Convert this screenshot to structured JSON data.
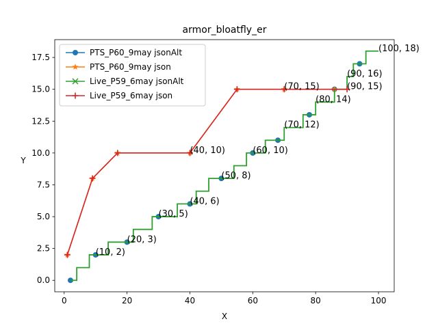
{
  "chart_data": {
    "type": "line",
    "title": "armor_bloatfly_er",
    "xlabel": "X",
    "ylabel": "Y",
    "xlim": [
      -3,
      105
    ],
    "ylim": [
      -0.9,
      18.9
    ],
    "xticks": [
      0,
      20,
      40,
      60,
      80,
      100
    ],
    "yticks": [
      0.0,
      2.5,
      5.0,
      7.5,
      10.0,
      12.5,
      15.0,
      17.5
    ],
    "ytick_labels": [
      "0.0",
      "2.5",
      "5.0",
      "7.5",
      "10.0",
      "12.5",
      "15.0",
      "17.5"
    ],
    "grid": false,
    "legend_position": "upper-left",
    "series": [
      {
        "name": "PTS_P60_9may jsonAlt",
        "color": "#1f77b4",
        "marker": "circle",
        "line": "none",
        "x": [
          2,
          10,
          20,
          30,
          40,
          50,
          60,
          68,
          78,
          86,
          94
        ],
        "y": [
          0,
          2,
          3,
          5,
          6,
          8,
          10,
          11,
          13,
          15,
          17
        ]
      },
      {
        "name": "PTS_P60_9may json",
        "color": "#ff7f0e",
        "marker": "star",
        "line": "solid",
        "x": [
          1,
          9,
          17,
          40,
          55,
          70,
          86
        ],
        "y": [
          2,
          8,
          10,
          10,
          15,
          15,
          15
        ]
      },
      {
        "name": "Live_P59_6may jsonAlt",
        "color": "#2ca02c",
        "marker": "x",
        "line": "step",
        "x": [
          2,
          4,
          8,
          10,
          14,
          18,
          22,
          28,
          32,
          36,
          40,
          42,
          46,
          50,
          54,
          58,
          60,
          64,
          68,
          70,
          74,
          76,
          78,
          80,
          84,
          86,
          90,
          92,
          96,
          100
        ],
        "y": [
          0,
          1,
          2,
          2,
          3,
          3,
          4,
          5,
          5,
          6,
          6,
          7,
          8,
          8,
          9,
          10,
          10,
          11,
          11,
          12,
          12,
          13,
          13,
          14,
          14,
          15,
          16,
          17,
          18,
          18
        ]
      },
      {
        "name": "Live_P59_6may json",
        "color": "#d62728",
        "marker": "plus",
        "line": "solid",
        "x": [
          1,
          9,
          17,
          40,
          55,
          70,
          90
        ],
        "y": [
          2,
          8,
          10,
          10,
          15,
          15,
          15
        ]
      }
    ],
    "annotations": [
      {
        "text": "(10, 2)",
        "x": 10,
        "y": 2
      },
      {
        "text": "(20, 3)",
        "x": 20,
        "y": 3
      },
      {
        "text": "(30, 5)",
        "x": 30,
        "y": 5
      },
      {
        "text": "(40, 6)",
        "x": 40,
        "y": 6
      },
      {
        "text": "(50, 8)",
        "x": 50,
        "y": 8
      },
      {
        "text": "(60, 10)",
        "x": 60,
        "y": 10
      },
      {
        "text": "(70, 12)",
        "x": 70,
        "y": 12
      },
      {
        "text": "(80, 14)",
        "x": 80,
        "y": 14
      },
      {
        "text": "(90, 16)",
        "x": 90,
        "y": 16
      },
      {
        "text": "(100, 18)",
        "x": 100,
        "y": 18
      },
      {
        "text": "(40, 10)",
        "x": 40,
        "y": 10
      },
      {
        "text": "(70, 15)",
        "x": 70,
        "y": 15
      },
      {
        "text": "(90, 15)",
        "x": 90,
        "y": 15
      }
    ]
  }
}
